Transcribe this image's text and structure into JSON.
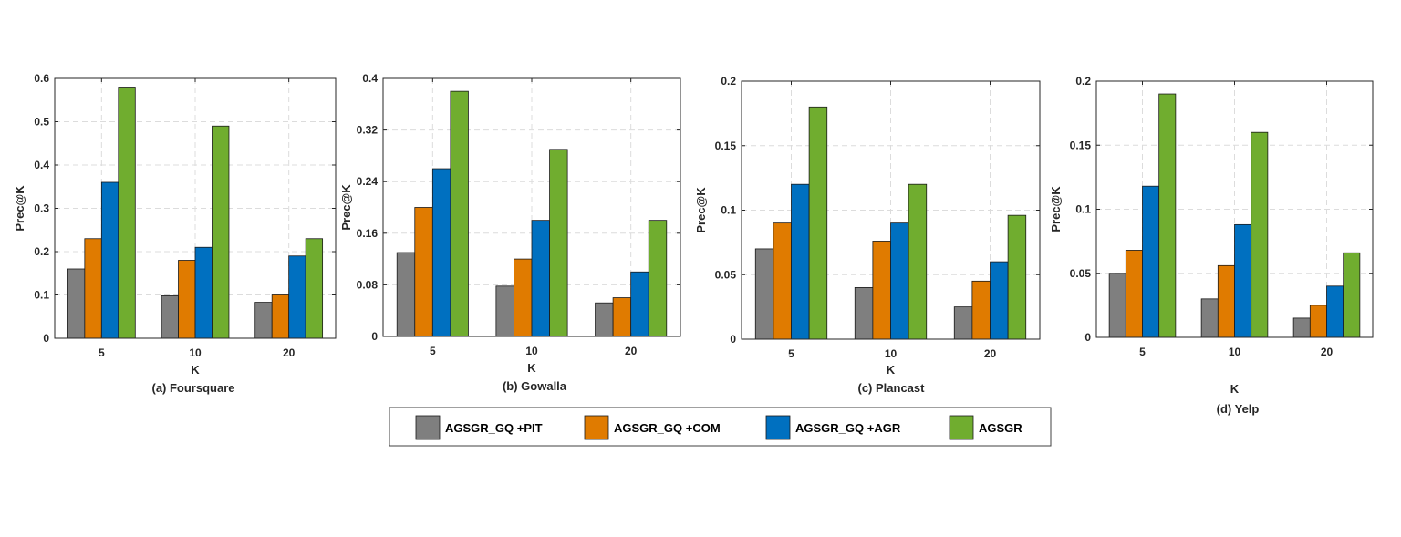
{
  "series_colors": [
    "#7f7f7f",
    "#e07b00",
    "#0070c0",
    "#70ad2f"
  ],
  "legend": {
    "items": [
      "AGSGR_GQ +PIT",
      "AGSGR_GQ +COM",
      "AGSGR_GQ +AGR",
      "AGSGR"
    ]
  },
  "chart_data": [
    {
      "type": "bar",
      "caption": "(a) Foursquare",
      "xlabel": "K",
      "ylabel": "Prec@K",
      "categories": [
        "5",
        "10",
        "20"
      ],
      "ylim": [
        0,
        0.6
      ],
      "yticks": [
        0,
        0.1,
        0.2,
        0.3,
        0.4,
        0.5,
        0.6
      ],
      "ytick_labels": [
        "0",
        "0.1",
        "0.2",
        "0.3",
        "0.4",
        "0.5",
        "0.6"
      ],
      "grid": true,
      "series": [
        {
          "name": "AGSGR_GQ +PIT",
          "values": [
            0.16,
            0.098,
            0.083
          ]
        },
        {
          "name": "AGSGR_GQ +COM",
          "values": [
            0.23,
            0.18,
            0.1
          ]
        },
        {
          "name": "AGSGR_GQ +AGR",
          "values": [
            0.36,
            0.21,
            0.19
          ]
        },
        {
          "name": "AGSGR",
          "values": [
            0.58,
            0.49,
            0.23
          ]
        }
      ]
    },
    {
      "type": "bar",
      "caption": "(b) Gowalla",
      "xlabel": "K",
      "ylabel": "Prec@K",
      "categories": [
        "5",
        "10",
        "20"
      ],
      "ylim": [
        0,
        0.4
      ],
      "yticks": [
        0,
        0.08,
        0.16,
        0.24,
        0.32,
        0.4
      ],
      "ytick_labels": [
        "0",
        "0.08",
        "0.16",
        "0.24",
        "0.32",
        "0.4"
      ],
      "grid": true,
      "series": [
        {
          "name": "AGSGR_GQ +PIT",
          "values": [
            0.13,
            0.078,
            0.052
          ]
        },
        {
          "name": "AGSGR_GQ +COM",
          "values": [
            0.2,
            0.12,
            0.06
          ]
        },
        {
          "name": "AGSGR_GQ +AGR",
          "values": [
            0.26,
            0.18,
            0.1
          ]
        },
        {
          "name": "AGSGR",
          "values": [
            0.38,
            0.29,
            0.18
          ]
        }
      ]
    },
    {
      "type": "bar",
      "caption": "(c) Plancast",
      "xlabel": "K",
      "ylabel": "Prec@K",
      "categories": [
        "5",
        "10",
        "20"
      ],
      "ylim": [
        0,
        0.2
      ],
      "yticks": [
        0,
        0.05,
        0.1,
        0.15,
        0.2
      ],
      "ytick_labels": [
        "0",
        "0.05",
        "0.1",
        "0.15",
        "0.2"
      ],
      "grid": true,
      "series": [
        {
          "name": "AGSGR_GQ +PIT",
          "values": [
            0.07,
            0.04,
            0.025
          ]
        },
        {
          "name": "AGSGR_GQ +COM",
          "values": [
            0.09,
            0.076,
            0.045
          ]
        },
        {
          "name": "AGSGR_GQ +AGR",
          "values": [
            0.12,
            0.09,
            0.06
          ]
        },
        {
          "name": "AGSGR",
          "values": [
            0.18,
            0.12,
            0.096
          ]
        }
      ]
    },
    {
      "type": "bar",
      "caption": "(d) Yelp",
      "xlabel": "K",
      "ylabel": "Prec@K",
      "categories": [
        "5",
        "10",
        "20"
      ],
      "ylim": [
        0,
        0.2
      ],
      "yticks": [
        0,
        0.05,
        0.1,
        0.15,
        0.2
      ],
      "ytick_labels": [
        "0",
        "0.05",
        "0.1",
        "0.15",
        "0.2"
      ],
      "grid": true,
      "series": [
        {
          "name": "AGSGR_GQ +PIT",
          "values": [
            0.05,
            0.03,
            0.015
          ]
        },
        {
          "name": "AGSGR_GQ +COM",
          "values": [
            0.068,
            0.056,
            0.025
          ]
        },
        {
          "name": "AGSGR_GQ +AGR",
          "values": [
            0.118,
            0.088,
            0.04
          ]
        },
        {
          "name": "AGSGR",
          "values": [
            0.19,
            0.16,
            0.066
          ]
        }
      ]
    }
  ]
}
